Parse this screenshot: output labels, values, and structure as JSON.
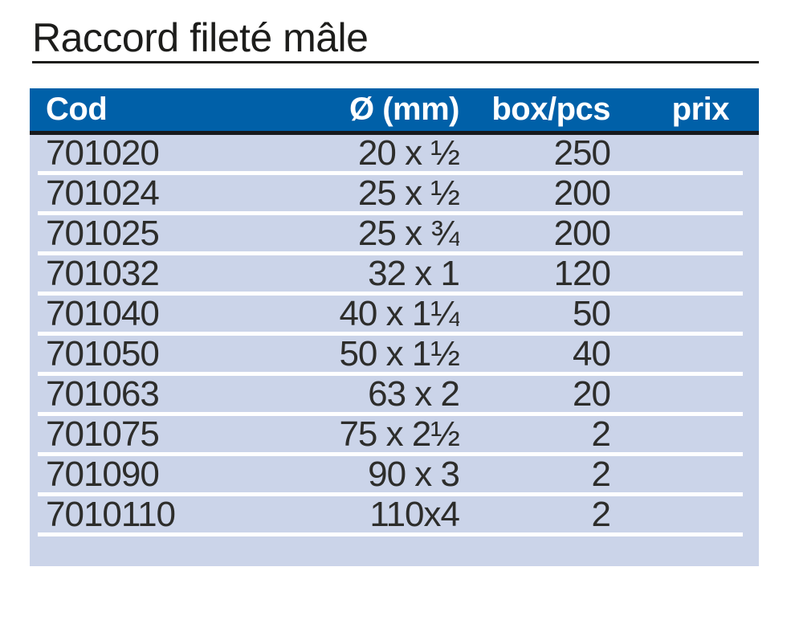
{
  "page": {
    "title": "Raccord fileté mâle"
  },
  "colors": {
    "header_bg": "#0060a8",
    "header_text": "#ffffff",
    "header_underline": "#17191d",
    "row_bg": "#cbd4e9",
    "row_separator": "#ffffff",
    "body_text": "#2d2d2b",
    "title_text": "#1d1d1b"
  },
  "table": {
    "columns": [
      {
        "key": "cod",
        "label": "Cod",
        "align": "left"
      },
      {
        "key": "diameter",
        "label": "Ø (mm)",
        "align": "right"
      },
      {
        "key": "box_pcs",
        "label": "box/pcs",
        "align": "right"
      },
      {
        "key": "prix",
        "label": "prix",
        "align": "right"
      }
    ],
    "rows": [
      {
        "cod": "701020",
        "diameter": "20 x ½",
        "box_pcs": "250",
        "prix": ""
      },
      {
        "cod": "701024",
        "diameter": "25 x ½",
        "box_pcs": "200",
        "prix": ""
      },
      {
        "cod": "701025",
        "diameter": "25 x ¾",
        "box_pcs": "200",
        "prix": ""
      },
      {
        "cod": "701032",
        "diameter": "32 x 1",
        "box_pcs": "120",
        "prix": ""
      },
      {
        "cod": "701040",
        "diameter": "40 x 1¼",
        "box_pcs": "50",
        "prix": ""
      },
      {
        "cod": "701050",
        "diameter": "50 x 1½",
        "box_pcs": "40",
        "prix": ""
      },
      {
        "cod": "701063",
        "diameter": "63 x 2",
        "box_pcs": "20",
        "prix": ""
      },
      {
        "cod": "701075",
        "diameter": "75 x 2½",
        "box_pcs": "2",
        "prix": ""
      },
      {
        "cod": "701090",
        "diameter": "90 x 3",
        "box_pcs": "2",
        "prix": ""
      },
      {
        "cod": "7010110",
        "diameter": "110x4",
        "box_pcs": "2",
        "prix": ""
      }
    ]
  }
}
